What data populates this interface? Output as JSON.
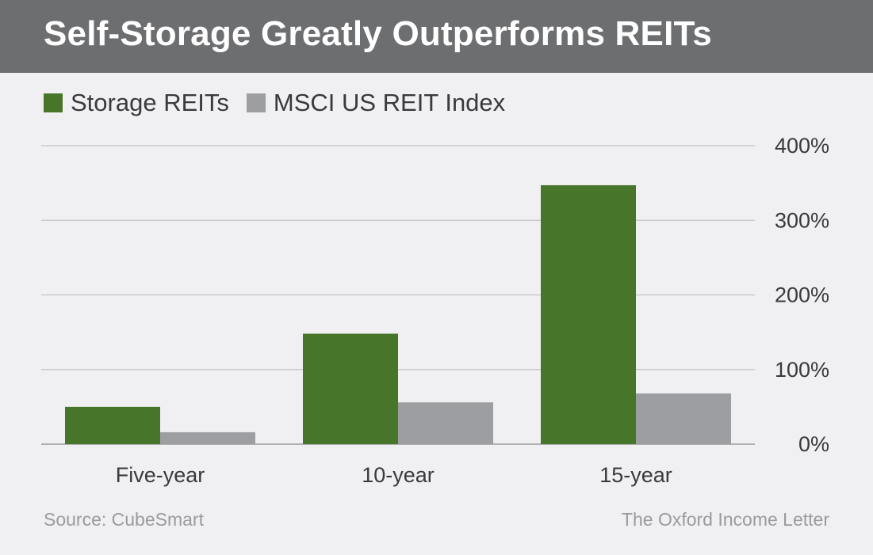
{
  "header": {
    "title": "Self-Storage Greatly Outperforms REITs"
  },
  "legend": {
    "items": [
      {
        "label": "Storage REITs",
        "color": "#47762a"
      },
      {
        "label": "MSCI US REIT Index",
        "color": "#9d9ea1"
      }
    ]
  },
  "chart_data": {
    "type": "bar",
    "title": "Self-Storage Greatly Outperforms REITs",
    "categories": [
      "Five-year",
      "10-year",
      "15-year"
    ],
    "series": [
      {
        "name": "Storage REITs",
        "color": "#47762a",
        "values": [
          50,
          148,
          347
        ]
      },
      {
        "name": "MSCI US REIT Index",
        "color": "#9d9ea1",
        "values": [
          16,
          56,
          68
        ]
      }
    ],
    "xlabel": "",
    "ylabel": "",
    "ylim": [
      0,
      400
    ],
    "yticks": [
      0,
      100,
      200,
      300,
      400
    ],
    "ytick_labels": [
      "0%",
      "100%",
      "200%",
      "300%",
      "400%"
    ],
    "grid": true,
    "legend_position": "top-left",
    "y_axis_side": "right"
  },
  "footer": {
    "source": "Source: CubeSmart",
    "publisher": "The Oxford Income Letter"
  }
}
